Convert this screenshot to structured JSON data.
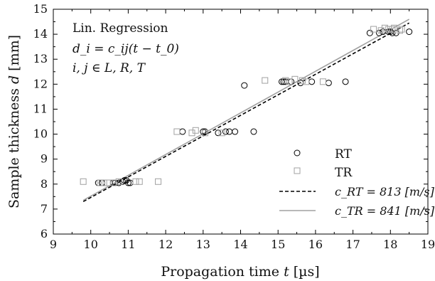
{
  "chart_data": {
    "type": "scatter",
    "xlabel_prefix": "Propagation time ",
    "xlabel_var": "t",
    "xlabel_unit": " [µs]",
    "ylabel_prefix": "Sample thickness ",
    "ylabel_var": "d",
    "ylabel_unit": " [mm]",
    "xlim": [
      9,
      19
    ],
    "ylim": [
      6,
      15
    ],
    "xticks": [
      9,
      10,
      11,
      12,
      13,
      14,
      15,
      16,
      17,
      18,
      19
    ],
    "yticks": [
      6,
      7,
      8,
      9,
      10,
      11,
      12,
      13,
      14,
      15
    ],
    "annotation": {
      "line1": "Lin. Regression",
      "line2": "d_i = c_ij(t − t_0)",
      "line3": "i, j ∈ L, R, T"
    },
    "legend": {
      "placement": "bottom-right",
      "rt_label": "RT",
      "tr_label": "TR",
      "fit_rt_label": "c_RT = 813 [m/s]",
      "fit_tr_label": "c_TR = 841 [m/s]"
    },
    "series": [
      {
        "name": "RT",
        "marker": "circle",
        "color": "#000000",
        "points": [
          [
            10.2,
            8.05
          ],
          [
            10.3,
            8.05
          ],
          [
            10.6,
            8.05
          ],
          [
            10.65,
            8.05
          ],
          [
            10.75,
            8.05
          ],
          [
            10.85,
            8.1
          ],
          [
            10.9,
            8.15
          ],
          [
            10.95,
            8.15
          ],
          [
            11.0,
            8.05
          ],
          [
            11.05,
            8.05
          ],
          [
            12.45,
            10.1
          ],
          [
            13.0,
            10.1
          ],
          [
            13.05,
            10.1
          ],
          [
            13.4,
            10.05
          ],
          [
            13.6,
            10.1
          ],
          [
            13.7,
            10.1
          ],
          [
            13.85,
            10.1
          ],
          [
            14.1,
            11.95
          ],
          [
            14.35,
            10.1
          ],
          [
            15.1,
            12.1
          ],
          [
            15.15,
            12.1
          ],
          [
            15.2,
            12.1
          ],
          [
            15.35,
            12.1
          ],
          [
            15.6,
            12.05
          ],
          [
            15.9,
            12.1
          ],
          [
            16.35,
            12.05
          ],
          [
            16.8,
            12.1
          ],
          [
            17.45,
            14.05
          ],
          [
            17.7,
            14.05
          ],
          [
            17.8,
            14.1
          ],
          [
            17.95,
            14.1
          ],
          [
            18.0,
            14.1
          ],
          [
            18.05,
            14.05
          ],
          [
            18.15,
            14.05
          ],
          [
            18.5,
            14.1
          ]
        ]
      },
      {
        "name": "TR",
        "marker": "square",
        "color": "#a0a0a0",
        "points": [
          [
            9.8,
            8.1
          ],
          [
            10.25,
            8.05
          ],
          [
            10.35,
            8.05
          ],
          [
            10.45,
            8.05
          ],
          [
            10.6,
            8.05
          ],
          [
            10.75,
            8.1
          ],
          [
            11.2,
            8.1
          ],
          [
            11.3,
            8.1
          ],
          [
            11.8,
            8.1
          ],
          [
            12.3,
            10.1
          ],
          [
            12.7,
            10.05
          ],
          [
            12.8,
            10.15
          ],
          [
            13.05,
            10.05
          ],
          [
            13.5,
            10.05
          ],
          [
            14.65,
            12.15
          ],
          [
            15.2,
            12.15
          ],
          [
            15.3,
            12.1
          ],
          [
            15.45,
            12.2
          ],
          [
            15.65,
            12.15
          ],
          [
            15.75,
            12.1
          ],
          [
            16.2,
            12.1
          ],
          [
            17.55,
            14.2
          ],
          [
            17.75,
            14.15
          ],
          [
            17.85,
            14.25
          ],
          [
            17.95,
            14.2
          ],
          [
            18.05,
            14.2
          ],
          [
            18.1,
            14.25
          ],
          [
            18.25,
            14.15
          ],
          [
            18.3,
            14.2
          ]
        ]
      }
    ],
    "fits": [
      {
        "name": "c_RT",
        "style": "dashed",
        "color": "#000000",
        "x": [
          9.8,
          18.5
        ],
        "y": [
          7.3,
          14.45
        ]
      },
      {
        "name": "c_TR",
        "style": "solid",
        "color": "#a0a0a0",
        "x": [
          9.8,
          18.5
        ],
        "y": [
          7.35,
          14.6
        ]
      }
    ]
  }
}
